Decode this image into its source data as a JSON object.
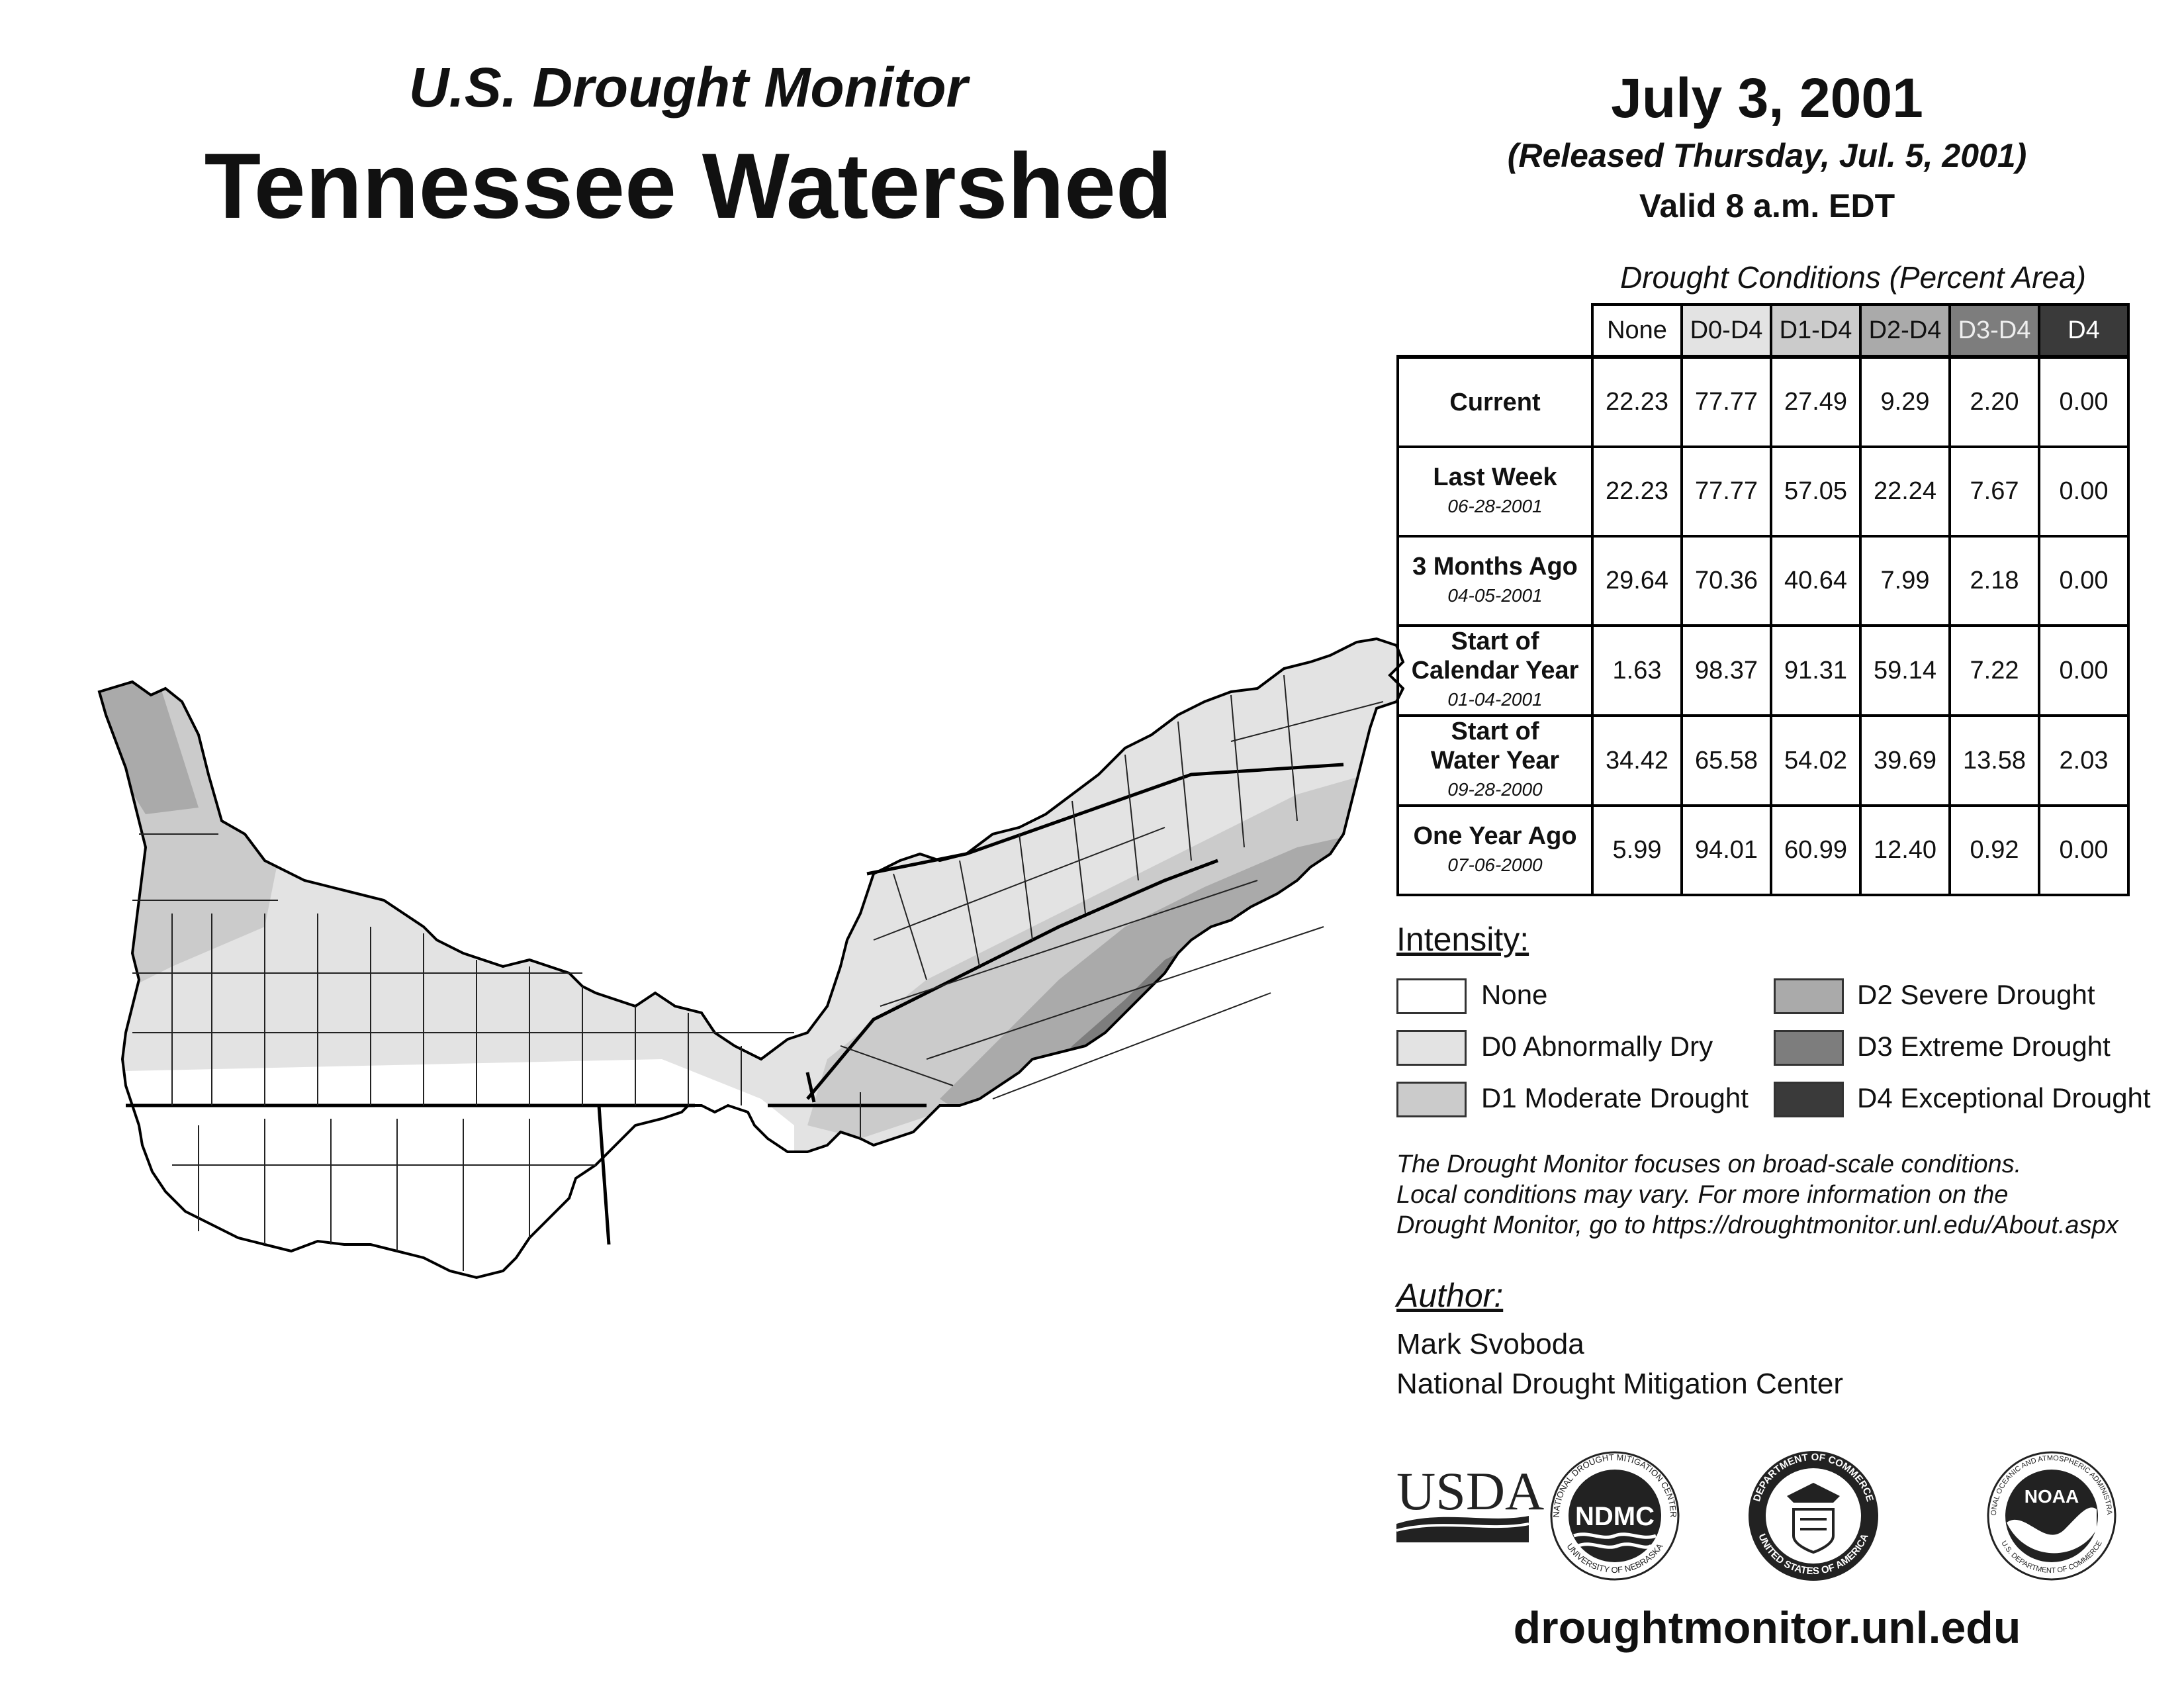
{
  "header": {
    "subtitle": "U.S. Drought Monitor",
    "title": "Tennessee Watershed",
    "date": "July 3, 2001",
    "released": "(Released Thursday, Jul. 5, 2001)",
    "valid": "Valid 8 a.m. EDT"
  },
  "conditions": {
    "title": "Drought Conditions (Percent Area)",
    "columns": [
      "None",
      "D0-D4",
      "D1-D4",
      "D2-D4",
      "D3-D4",
      "D4"
    ],
    "rows": [
      {
        "label": "Current",
        "date": "",
        "values": [
          "22.23",
          "77.77",
          "27.49",
          "9.29",
          "2.20",
          "0.00"
        ]
      },
      {
        "label": "Last Week",
        "date": "06-28-2001",
        "values": [
          "22.23",
          "77.77",
          "57.05",
          "22.24",
          "7.67",
          "0.00"
        ]
      },
      {
        "label": "3 Months Ago",
        "date": "04-05-2001",
        "values": [
          "29.64",
          "70.36",
          "40.64",
          "7.99",
          "2.18",
          "0.00"
        ]
      },
      {
        "label_lines": [
          "Start of",
          "Calendar Year"
        ],
        "date": "01-04-2001",
        "values": [
          "1.63",
          "98.37",
          "91.31",
          "59.14",
          "7.22",
          "0.00"
        ]
      },
      {
        "label_lines": [
          "Start of",
          "Water Year"
        ],
        "date": "09-28-2000",
        "values": [
          "34.42",
          "65.58",
          "54.02",
          "39.69",
          "13.58",
          "2.03"
        ]
      },
      {
        "label": "One Year Ago",
        "date": "07-06-2000",
        "values": [
          "5.99",
          "94.01",
          "60.99",
          "12.40",
          "0.92",
          "0.00"
        ]
      }
    ]
  },
  "legend": {
    "title": "Intensity:",
    "items": [
      {
        "label": "None",
        "color": "#ffffff"
      },
      {
        "label": "D0 Abnormally Dry",
        "color": "#e3e3e3"
      },
      {
        "label": "D1 Moderate Drought",
        "color": "#cbcbcb"
      },
      {
        "label": "D2 Severe Drought",
        "color": "#aaaaaa"
      },
      {
        "label": "D3 Extreme Drought",
        "color": "#7d7d7d"
      },
      {
        "label": "D4 Exceptional Drought",
        "color": "#3a3a3a"
      }
    ]
  },
  "note": {
    "line1": "The Drought Monitor focuses on broad-scale conditions.",
    "line2": "Local conditions may vary. For more information on the",
    "line3": "Drought Monitor, go to https://droughtmonitor.unl.edu/About.aspx"
  },
  "author": {
    "title": "Author:",
    "name": "Mark Svoboda",
    "org": "National Drought Mitigation Center"
  },
  "logos": {
    "usda": "USDA",
    "ndmc": "NDMC",
    "ndmc_ring_top": "NATIONAL DROUGHT MITIGATION CENTER",
    "ndmc_ring_bottom": "UNIVERSITY OF NEBRASKA",
    "doc_ring_top": "DEPARTMENT OF COMMERCE",
    "doc_ring_bottom": "UNITED STATES OF AMERICA",
    "noaa": "NOAA",
    "noaa_ring_top": "NATIONAL OCEANIC AND ATMOSPHERIC ADMINISTRATION",
    "noaa_ring_bottom": "U.S. DEPARTMENT OF COMMERCE"
  },
  "website": "droughtmonitor.unl.edu"
}
